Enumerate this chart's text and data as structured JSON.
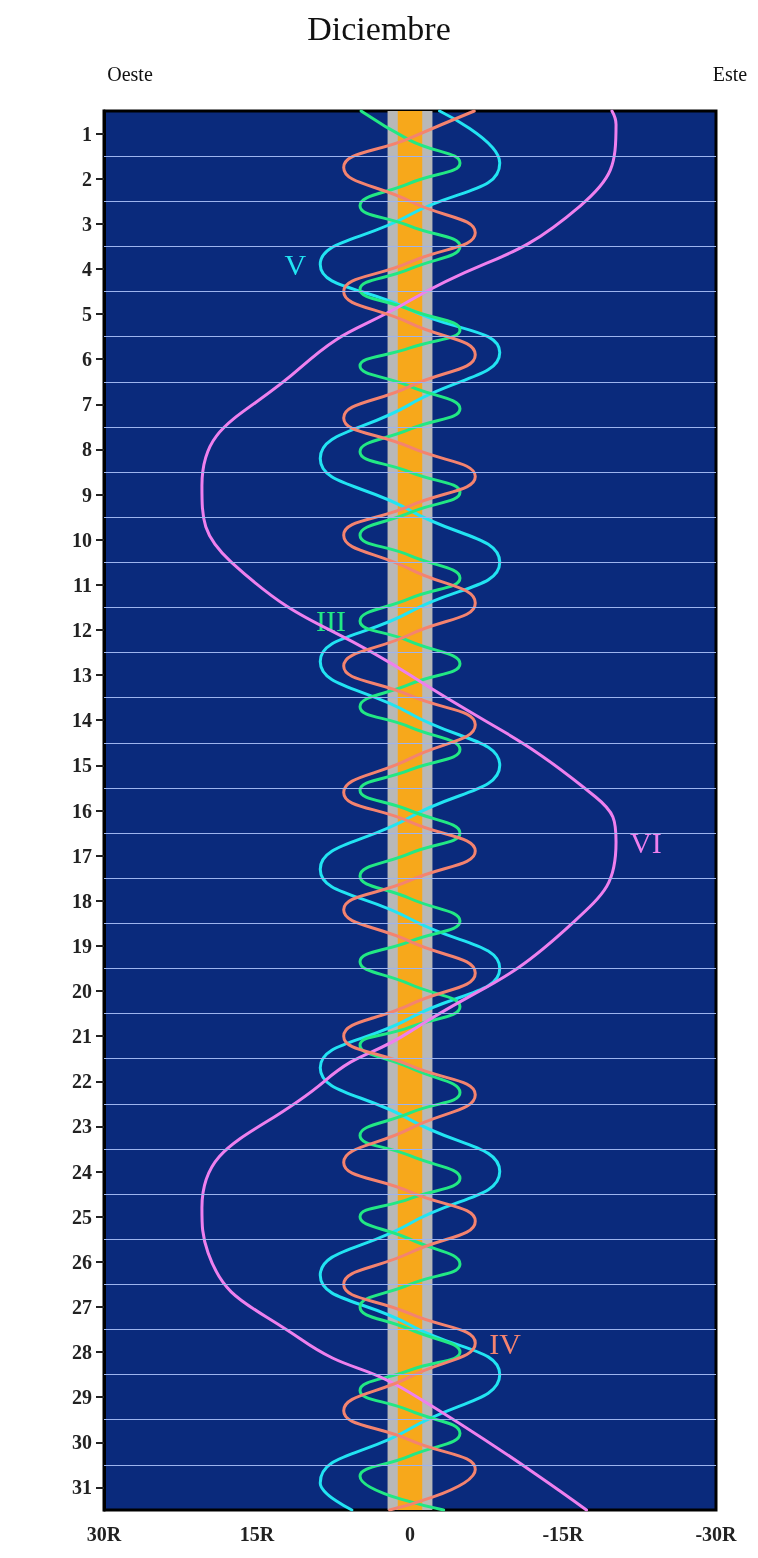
{
  "chart_data": {
    "type": "line",
    "title": "Diciembre",
    "annotations": [
      "Oeste",
      "Este"
    ],
    "xlim": [
      30,
      -30
    ],
    "xticks": [
      {
        "value": 30,
        "label": "30R"
      },
      {
        "value": 15,
        "label": "15R"
      },
      0,
      {
        "value": -15,
        "label": "-15R"
      },
      {
        "value": -30,
        "label": "-30R"
      }
    ],
    "ylim": [
      31.5,
      0.5
    ],
    "yticks": [
      1,
      {
        "value": 1.5,
        "label": null
      },
      2,
      {
        "value": 2.5,
        "label": null
      },
      3,
      {
        "value": 3.5,
        "label": null
      },
      4,
      {
        "value": 4.5,
        "label": null
      },
      5,
      {
        "value": 5.5,
        "label": null
      },
      6,
      {
        "value": 6.5,
        "label": null
      },
      7,
      {
        "value": 7.5,
        "label": null
      },
      8,
      {
        "value": 8.5,
        "label": null
      },
      9,
      {
        "value": 9.5,
        "label": null
      },
      10,
      {
        "value": 10.5,
        "label": null
      },
      11,
      {
        "value": 11.5,
        "label": null
      },
      12,
      {
        "value": 12.5,
        "label": null
      },
      13,
      {
        "value": 13.5,
        "label": null
      },
      14,
      {
        "value": 14.5,
        "label": null
      },
      15,
      {
        "value": 15.5,
        "label": null
      },
      16,
      {
        "value": 16.5,
        "label": null
      },
      17,
      {
        "value": 17.5,
        "label": null
      },
      18,
      {
        "value": 18.5,
        "label": null
      },
      19,
      {
        "value": 19.5,
        "label": null
      },
      20,
      {
        "value": 20.5,
        "label": null
      },
      21,
      {
        "value": 21.5,
        "label": null
      },
      22,
      {
        "value": 22.5,
        "label": null
      },
      23,
      {
        "value": 23.5,
        "label": null
      },
      24,
      {
        "value": 24.5,
        "label": null
      },
      25,
      {
        "value": 25.5,
        "label": null
      },
      26,
      {
        "value": 26.5,
        "label": null
      },
      27,
      {
        "value": 27.5,
        "label": null
      },
      28,
      {
        "value": 28.5,
        "label": null
      },
      29,
      {
        "value": 29.5,
        "label": null
      },
      30,
      {
        "value": 30.5,
        "label": null
      },
      31
    ],
    "grid": "y",
    "marker": "none",
    "line_style": "solid",
    "bands": [
      {
        "axis": "x",
        "from": 2.2,
        "to": -2.2,
        "color": "#b8b8b8"
      },
      {
        "axis": "x",
        "from": 1.2,
        "to": -1.2,
        "color": "#f7a81b"
      }
    ],
    "series": [
      {
        "name": "V",
        "color": "#22e4f2",
        "x": [
          -2.9,
          -8.8,
          0,
          8.8,
          0,
          -8.8,
          0,
          8.8,
          0,
          -8.8,
          0,
          8.8,
          0,
          -8.8,
          0,
          8.8,
          0,
          -8.8,
          0,
          8.8,
          0,
          -8.8,
          0,
          8.8,
          0,
          -8.8,
          0,
          8.8,
          5.7
        ],
        "values": [
          0.5,
          1.65,
          2.8,
          3.9,
          4.9,
          5.85,
          7.0,
          8.2,
          9.35,
          10.5,
          11.6,
          12.7,
          13.85,
          15.0,
          16.15,
          17.3,
          18.4,
          19.5,
          20.6,
          21.7,
          22.85,
          24.0,
          25.15,
          26.3,
          27.4,
          28.5,
          29.7,
          30.9,
          31.5
        ]
      },
      {
        "name": "III",
        "color": "#22e884",
        "x": [
          4.8,
          0,
          -4.9,
          0,
          4.9,
          0,
          -4.9,
          0,
          4.9,
          0,
          -4.9,
          0,
          4.9,
          0,
          -4.9,
          0,
          4.9,
          0,
          -4.9,
          0,
          4.9,
          0,
          -4.9,
          0,
          4.9,
          0,
          -4.9,
          0,
          4.9,
          0,
          -4.9,
          0,
          4.9,
          0,
          -4.9,
          0,
          4.9,
          0,
          -4.9,
          0,
          4.9,
          0,
          -4.9,
          0,
          4.9,
          0,
          -4.9,
          0,
          4.9,
          0,
          -4.9,
          0,
          4.9,
          0,
          -4.9,
          0,
          4.9,
          0,
          -4.9,
          0,
          4.9,
          0,
          -4.9,
          0,
          4.9,
          -3.3
        ],
        "values": [
          0.5,
          1.15,
          1.65,
          2.1,
          2.6,
          3.05,
          3.5,
          4.0,
          4.45,
          4.9,
          5.35,
          5.75,
          6.15,
          6.6,
          7.1,
          7.55,
          8.05,
          8.5,
          8.95,
          9.4,
          9.9,
          10.35,
          10.85,
          11.3,
          11.8,
          12.25,
          12.75,
          13.2,
          13.7,
          14.15,
          14.65,
          15.1,
          15.55,
          16.0,
          16.5,
          16.95,
          17.45,
          17.95,
          18.45,
          18.9,
          19.35,
          19.85,
          20.35,
          20.8,
          21.2,
          21.7,
          22.25,
          22.7,
          23.2,
          23.65,
          24.15,
          24.6,
          25.0,
          25.5,
          26.05,
          26.5,
          27.0,
          27.5,
          28.0,
          28.4,
          28.85,
          29.3,
          29.8,
          30.3,
          30.75,
          31.5
        ]
      },
      {
        "name": "VI",
        "color": "#ee80ee",
        "x": [
          -19.8,
          -20.2,
          -16.7,
          0,
          10.8,
          20.4,
          17.5,
          0,
          -18.2,
          -20.2,
          -15.9,
          0,
          8.4,
          20.4,
          19.8,
          10.8,
          0,
          -17.3
        ],
        "values": [
          0.5,
          0.8,
          2.6,
          4.7,
          6.2,
          8.8,
          10.5,
          13.0,
          15.7,
          16.7,
          18.5,
          20.9,
          22.0,
          24.8,
          25.8,
          27.7,
          28.9,
          31.5
        ]
      },
      {
        "name": "IV",
        "color": "#f4836f",
        "x": [
          -6.3,
          0,
          6.5,
          0,
          -6.4,
          0,
          6.5,
          0,
          -6.4,
          0,
          6.5,
          0,
          -6.4,
          0,
          6.5,
          0,
          -6.4,
          0,
          6.5,
          0,
          -6.4,
          0,
          6.5,
          0,
          -6.4,
          0,
          6.5,
          0,
          -6.4,
          0,
          6.5,
          0,
          -6.4,
          0,
          6.5,
          0,
          -6.4,
          0,
          6.5,
          0,
          -6.4,
          0,
          6.5,
          0,
          -6.4,
          2
        ],
        "values": [
          0.5,
          1.1,
          1.75,
          2.5,
          3.2,
          3.85,
          4.5,
          5.2,
          5.9,
          6.6,
          7.3,
          7.95,
          8.6,
          9.25,
          9.9,
          10.65,
          11.4,
          12.1,
          12.8,
          13.45,
          14.1,
          14.85,
          15.6,
          16.25,
          16.9,
          17.55,
          18.2,
          18.9,
          19.6,
          20.3,
          21.0,
          21.65,
          22.3,
          23.05,
          23.8,
          24.45,
          25.1,
          25.8,
          26.5,
          27.15,
          27.8,
          28.55,
          29.3,
          29.95,
          30.6,
          31.5
        ]
      }
    ]
  }
}
